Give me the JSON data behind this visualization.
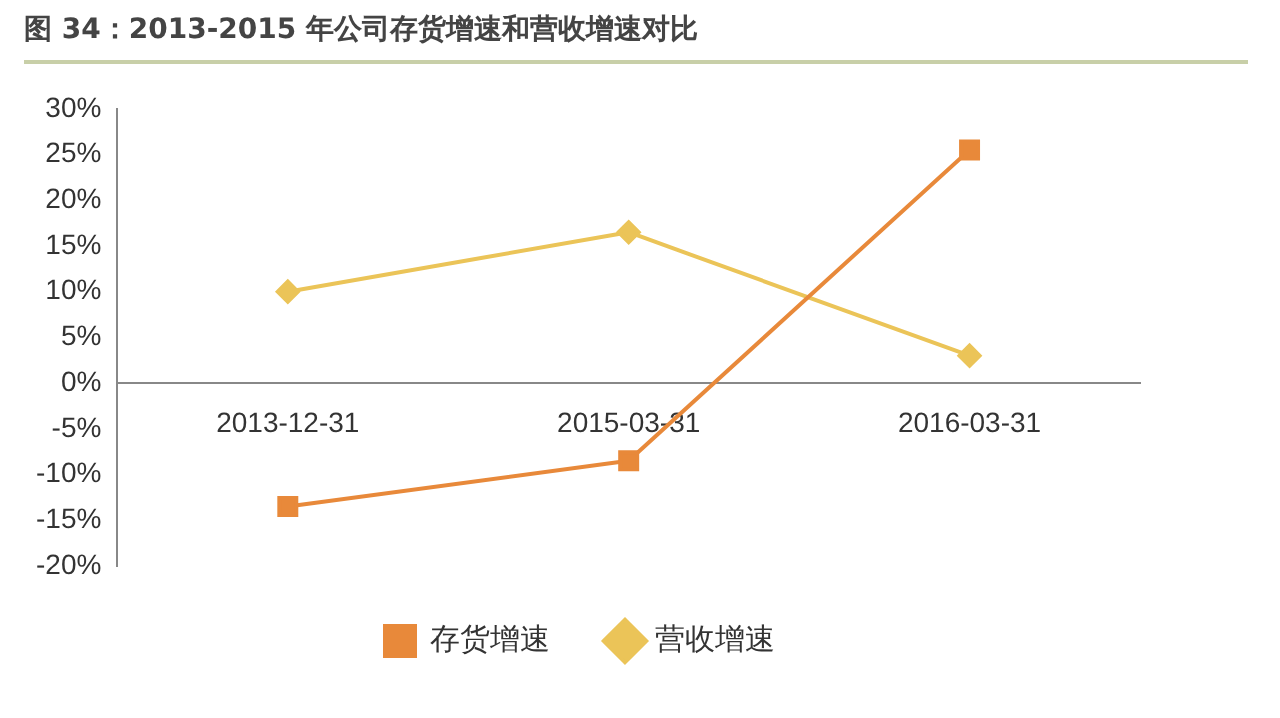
{
  "chart_data": {
    "type": "line",
    "title": "图 34：2013-2015 年公司存货增速和营收增速对比",
    "categories": [
      "2013-12-31",
      "2015-03-31",
      "2016-03-31"
    ],
    "series": [
      {
        "name": "存货增速",
        "color": "#e8893a",
        "values": [
          -13.5,
          -8.5,
          25.5
        ],
        "marker": "square"
      },
      {
        "name": "营收增速",
        "color": "#ebc458",
        "values": [
          10,
          16.5,
          3
        ],
        "marker": "diamond"
      }
    ],
    "ylim": [
      -20,
      30
    ],
    "yticks": [
      {
        "value": -20,
        "label": "-20%"
      },
      {
        "value": -15,
        "label": "-15%"
      },
      {
        "value": -10,
        "label": "-10%"
      },
      {
        "value": -5,
        "label": "-5%"
      },
      {
        "value": 0,
        "label": "0%"
      },
      {
        "value": 5,
        "label": "5%"
      },
      {
        "value": 10,
        "label": "10%"
      },
      {
        "value": 15,
        "label": "15%"
      },
      {
        "value": 20,
        "label": "20%"
      },
      {
        "value": 25,
        "label": "25%"
      },
      {
        "value": 30,
        "label": "30%"
      }
    ],
    "grid": false,
    "legend": "bottom",
    "line_style": "solid"
  }
}
